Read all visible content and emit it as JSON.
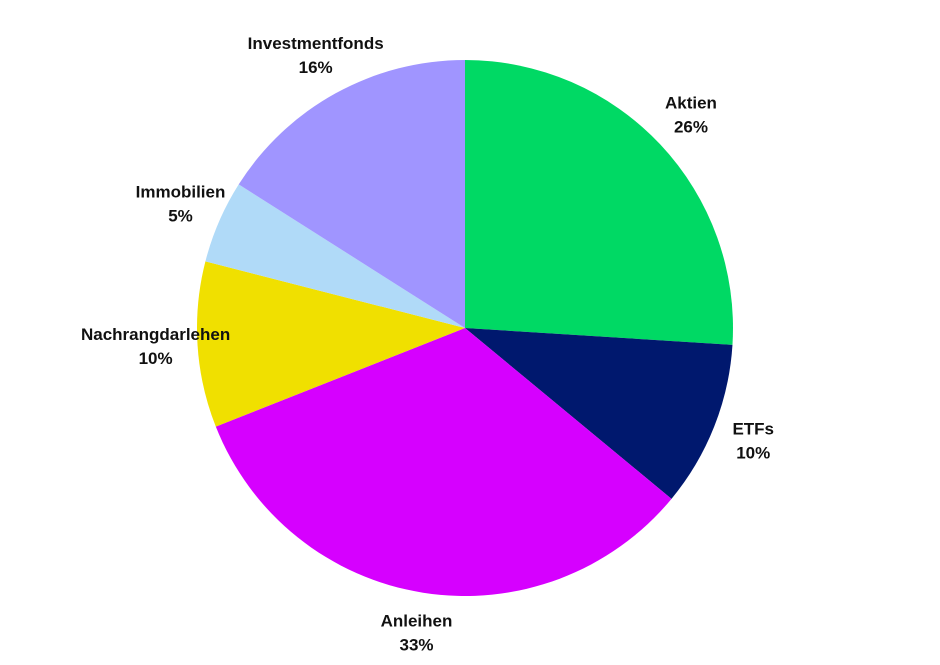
{
  "chart_data": {
    "type": "pie",
    "categories": [
      "Aktien",
      "ETFs",
      "Anleihen",
      "Nachrangdarlehen",
      "Immobilien",
      "Investmentfonds"
    ],
    "values": [
      26,
      10,
      33,
      10,
      5,
      16
    ],
    "value_labels": [
      "26%",
      "10%",
      "33%",
      "10%",
      "5%",
      "16%"
    ],
    "colors": [
      "#00d964",
      "#00186e",
      "#d600ff",
      "#f0e000",
      "#b0daf8",
      "#a095ff"
    ]
  }
}
